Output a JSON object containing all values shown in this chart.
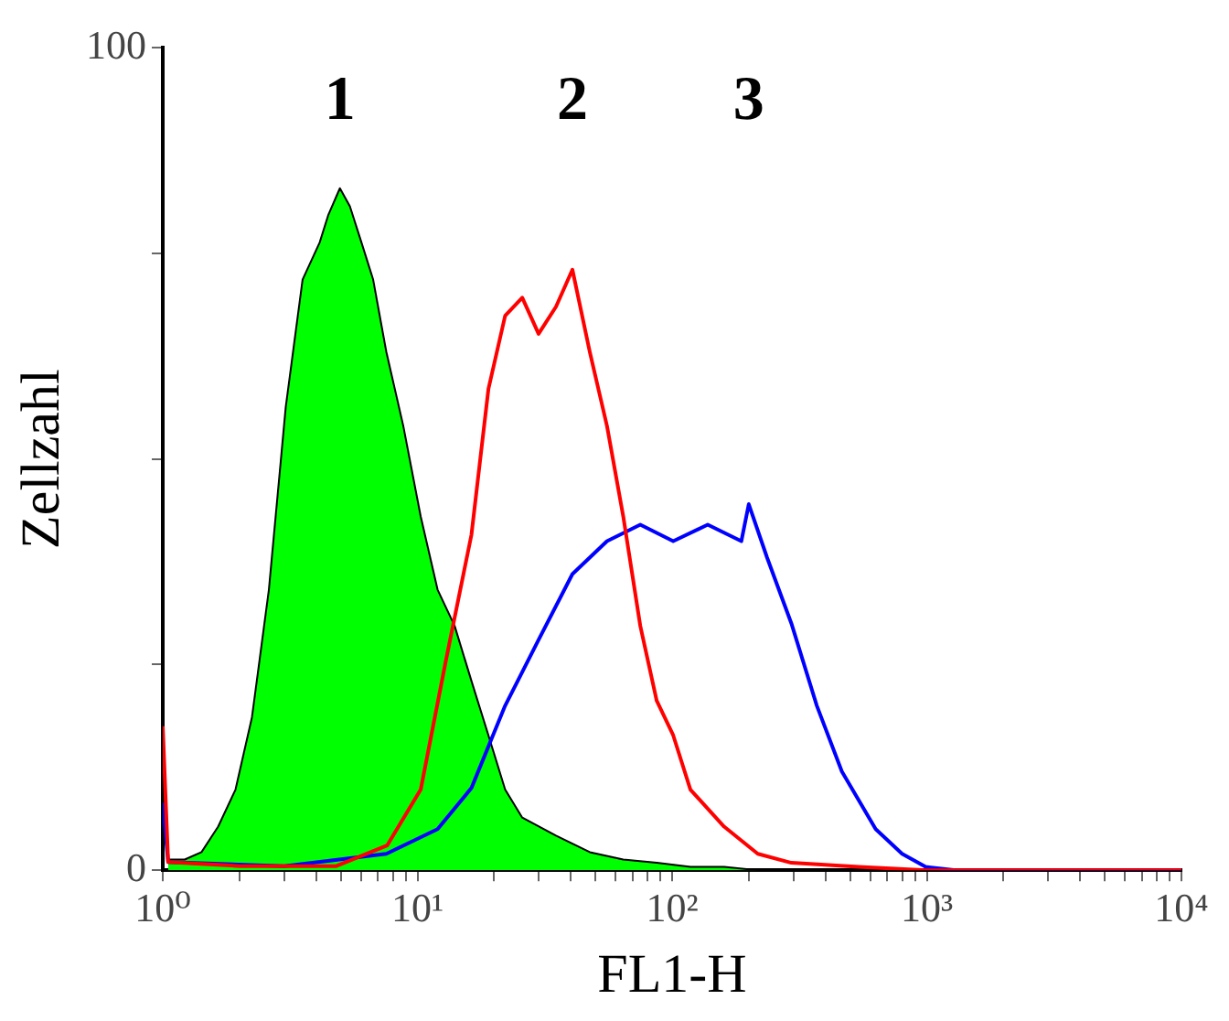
{
  "chart_data": {
    "type": "line",
    "xlabel": "FL1-H",
    "ylabel": "Zellzahl",
    "annotations": [
      "1",
      "2",
      "3"
    ],
    "log": "x",
    "xlim": [
      1,
      10000
    ],
    "xticks": [
      {
        "value": 1,
        "label": "10⁰"
      },
      {
        "value": 2,
        "label": null
      },
      {
        "value": 3,
        "label": null
      },
      {
        "value": 4,
        "label": null
      },
      {
        "value": 5,
        "label": null
      },
      {
        "value": 6,
        "label": null
      },
      {
        "value": 7,
        "label": null
      },
      {
        "value": 8,
        "label": null
      },
      {
        "value": 9,
        "label": null
      },
      {
        "value": 10,
        "label": "10¹"
      },
      {
        "value": 20,
        "label": null
      },
      {
        "value": 30,
        "label": null
      },
      {
        "value": 40,
        "label": null
      },
      {
        "value": 50,
        "label": null
      },
      {
        "value": 60,
        "label": null
      },
      {
        "value": 70,
        "label": null
      },
      {
        "value": 80,
        "label": null
      },
      {
        "value": 90,
        "label": null
      },
      {
        "value": 100,
        "label": "10²"
      },
      {
        "value": 200,
        "label": null
      },
      {
        "value": 300,
        "label": null
      },
      {
        "value": 400,
        "label": null
      },
      {
        "value": 500,
        "label": null
      },
      {
        "value": 600,
        "label": null
      },
      {
        "value": 700,
        "label": null
      },
      {
        "value": 800,
        "label": null
      },
      {
        "value": 900,
        "label": null
      },
      {
        "value": 1000,
        "label": "10³"
      },
      {
        "value": 2000,
        "label": null
      },
      {
        "value": 3000,
        "label": null
      },
      {
        "value": 4000,
        "label": null
      },
      {
        "value": 5000,
        "label": null
      },
      {
        "value": 6000,
        "label": null
      },
      {
        "value": 7000,
        "label": null
      },
      {
        "value": 8000,
        "label": null
      },
      {
        "value": 9000,
        "label": null
      },
      {
        "value": 10000,
        "label": "10⁴"
      }
    ],
    "ylim": [
      0,
      100
    ],
    "yticks": [
      0,
      {
        "value": 25,
        "label": null
      },
      {
        "value": 50,
        "label": null
      },
      {
        "value": 75,
        "label": null
      },
      100
    ],
    "grid": false,
    "legend": false,
    "marker": "none",
    "line_style": "solid",
    "series": [
      {
        "type": "area",
        "color": "#00ff00",
        "x": [
          1.05,
          1.22,
          1.42,
          1.65,
          1.93,
          2.24,
          2.61,
          3.04,
          3.54,
          4.13,
          4.46,
          4.96,
          5.43,
          6.03,
          6.7,
          7.55,
          8.8,
          10.3,
          12,
          14,
          16.3,
          19,
          22.1,
          25.8,
          35,
          47.5,
          64.3,
          87,
          118,
          160,
          217
        ],
        "values": [
          1.3,
          1.3,
          2.2,
          5.3,
          9.8,
          18.6,
          34.1,
          56.3,
          71.8,
          76.3,
          79.6,
          82.9,
          80.7,
          76.3,
          71.8,
          63,
          54,
          43,
          34.1,
          29.7,
          23,
          16.4,
          9.8,
          6.4,
          4.2,
          2.2,
          1.3,
          0.9,
          0.4,
          0.4,
          0
        ]
      },
      {
        "type": "line",
        "color": "#ff0000",
        "x": [
          1,
          1.05,
          2,
          4.8,
          7.6,
          10.3,
          12.9,
          16.3,
          19,
          22.1,
          25.8,
          29.9,
          35,
          40.6,
          47.5,
          55.5,
          64.3,
          75,
          87,
          101,
          118,
          160,
          217,
          294,
          540,
          1000,
          10000
        ],
        "values": [
          17.5,
          1,
          0.5,
          0.5,
          3,
          9.8,
          25.3,
          40.8,
          58.5,
          67.4,
          69.6,
          65.2,
          68.5,
          73,
          63,
          54,
          43,
          29.7,
          20.6,
          16.4,
          9.8,
          5.3,
          2,
          0.9,
          0.4,
          0,
          0
        ]
      },
      {
        "type": "line",
        "color": "#0000ff",
        "x": [
          1,
          1.05,
          3,
          7.55,
          12,
          16.3,
          22.1,
          29.9,
          40.6,
          55.5,
          75,
          101,
          138,
          187,
          200,
          236,
          294,
          370,
          464,
          630,
          800,
          990,
          1300,
          10000
        ],
        "values": [
          8.2,
          1,
          0.5,
          2,
          5,
          10,
          20,
          28,
          36,
          40,
          42,
          40,
          42,
          40,
          44.5,
          38,
          30,
          20,
          12,
          5,
          2,
          0.4,
          0,
          0
        ]
      }
    ]
  }
}
